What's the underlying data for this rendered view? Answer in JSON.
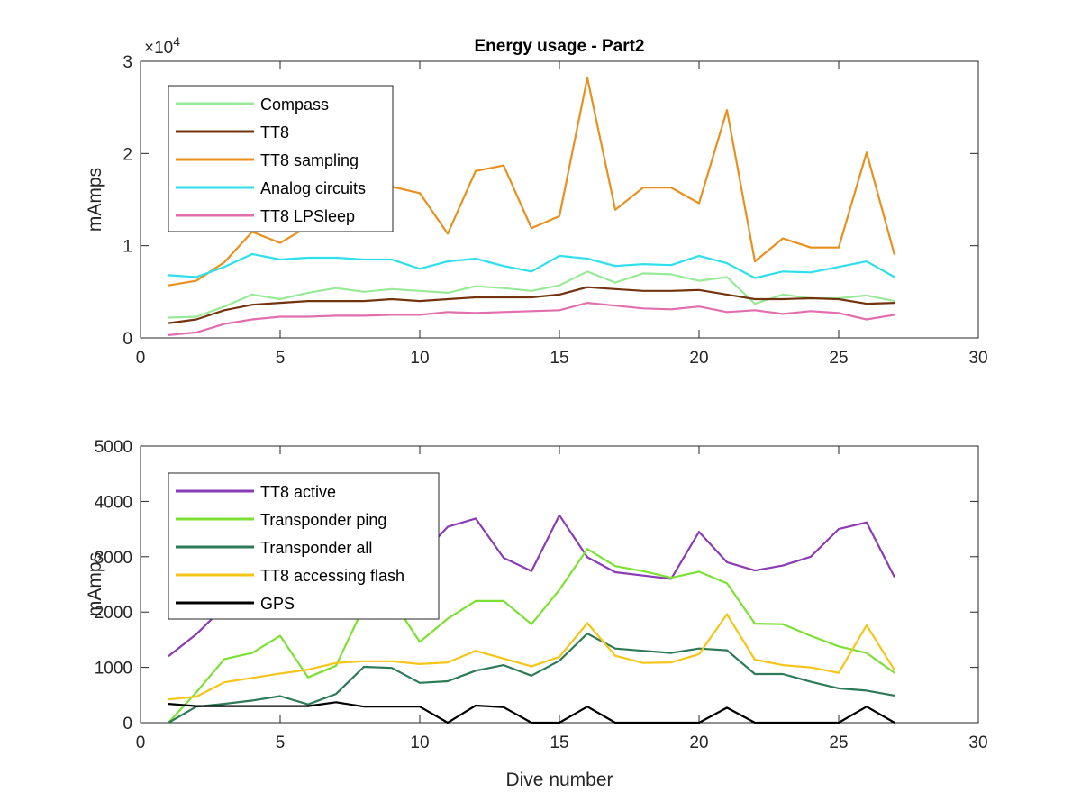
{
  "figure": {
    "title": "Energy usage - Part2"
  },
  "chart_data": [
    {
      "type": "line",
      "title": "Energy usage - Part2",
      "xlabel": "",
      "ylabel": "mAmps",
      "y_exponent_label": "×10",
      "y_exponent_power": "4",
      "xlim": [
        0,
        30
      ],
      "ylim": [
        0,
        30000
      ],
      "xticks": [
        0,
        5,
        10,
        15,
        20,
        25,
        30
      ],
      "yticks": [
        0,
        10000,
        20000,
        30000
      ],
      "ytick_labels": [
        "0",
        "1",
        "2",
        "3"
      ],
      "grid": false,
      "legend_position": "top-left",
      "x": [
        1,
        2,
        3,
        4,
        5,
        6,
        7,
        8,
        9,
        10,
        11,
        12,
        13,
        14,
        15,
        16,
        17,
        18,
        19,
        20,
        21,
        22,
        23,
        24,
        25,
        26,
        27
      ],
      "series": [
        {
          "name": "Compass",
          "color": "#98ea98",
          "values": [
            2200,
            2300,
            3400,
            4700,
            4200,
            4900,
            5400,
            5000,
            5300,
            5100,
            4900,
            5600,
            5400,
            5100,
            5700,
            7200,
            6000,
            7000,
            6900,
            6200,
            6600,
            3700,
            4700,
            4300,
            4300,
            4600,
            4000
          ]
        },
        {
          "name": "TT8",
          "color": "#73330f",
          "values": [
            1600,
            2000,
            3000,
            3600,
            3800,
            4000,
            4000,
            4000,
            4200,
            4000,
            4200,
            4400,
            4400,
            4400,
            4700,
            5500,
            5300,
            5100,
            5100,
            5200,
            4700,
            4200,
            4200,
            4300,
            4200,
            3700,
            3800
          ]
        },
        {
          "name": "TT8 sampling",
          "color": "#e8901e",
          "values": [
            5700,
            6200,
            8200,
            11500,
            10300,
            12100,
            13800,
            15000,
            16400,
            15700,
            11300,
            18100,
            18700,
            11900,
            13200,
            28200,
            13900,
            16300,
            16300,
            14600,
            24700,
            8300,
            10800,
            9800,
            9800,
            20100,
            9000
          ]
        },
        {
          "name": "Analog circuits",
          "color": "#2de0ea",
          "values": [
            6800,
            6600,
            7700,
            9100,
            8500,
            8700,
            8700,
            8500,
            8500,
            7500,
            8300,
            8600,
            7800,
            7200,
            8900,
            8600,
            7800,
            8000,
            7900,
            8900,
            8100,
            6500,
            7200,
            7100,
            7700,
            8300,
            6600
          ]
        },
        {
          "name": "TT8 LPSleep",
          "color": "#e16fae",
          "values": [
            300,
            600,
            1500,
            2000,
            2300,
            2300,
            2400,
            2400,
            2500,
            2500,
            2800,
            2700,
            2800,
            2900,
            3000,
            3800,
            3500,
            3200,
            3100,
            3400,
            2800,
            3000,
            2600,
            2900,
            2700,
            2000,
            2500
          ]
        }
      ]
    },
    {
      "type": "line",
      "title": "",
      "xlabel": "Dive number",
      "ylabel": "mAmps",
      "xlim": [
        0,
        30
      ],
      "ylim": [
        0,
        5000
      ],
      "xticks": [
        0,
        5,
        10,
        15,
        20,
        25,
        30
      ],
      "yticks": [
        0,
        1000,
        2000,
        3000,
        4000,
        5000
      ],
      "ytick_labels": [
        "0",
        "1000",
        "2000",
        "3000",
        "4000",
        "5000"
      ],
      "grid": false,
      "legend_position": "top-left",
      "x": [
        1,
        2,
        3,
        4,
        5,
        6,
        7,
        8,
        9,
        10,
        11,
        12,
        13,
        14,
        15,
        16,
        17,
        18,
        19,
        20,
        21,
        22,
        23,
        24,
        25,
        26,
        27
      ],
      "series": [
        {
          "name": "TT8 active",
          "color": "#8a3cb4",
          "values": [
            1200,
            1600,
            2100,
            2600,
            2700,
            2900,
            3000,
            3200,
            3100,
            3000,
            3540,
            3690,
            2980,
            2740,
            3750,
            2990,
            2720,
            2660,
            2600,
            3450,
            2900,
            2750,
            2840,
            3000,
            3500,
            3620,
            2630
          ]
        },
        {
          "name": "Transponder ping",
          "color": "#7de135",
          "values": [
            0,
            550,
            1150,
            1260,
            1570,
            820,
            1030,
            2100,
            2230,
            1460,
            1880,
            2200,
            2200,
            1780,
            2400,
            3140,
            2830,
            2740,
            2620,
            2730,
            2520,
            1790,
            1780,
            1570,
            1380,
            1260,
            900
          ]
        },
        {
          "name": "Transponder all",
          "color": "#2e7a58",
          "values": [
            0,
            290,
            340,
            400,
            480,
            330,
            520,
            1010,
            990,
            720,
            750,
            940,
            1040,
            850,
            1120,
            1610,
            1340,
            1300,
            1260,
            1340,
            1310,
            880,
            880,
            740,
            620,
            580,
            490
          ]
        },
        {
          "name": "TT8 accessing flash",
          "color": "#f5c518",
          "values": [
            420,
            470,
            730,
            810,
            890,
            960,
            1080,
            1110,
            1110,
            1060,
            1090,
            1300,
            1160,
            1020,
            1190,
            1800,
            1210,
            1080,
            1090,
            1240,
            1960,
            1140,
            1040,
            1000,
            900,
            1760,
            950
          ]
        },
        {
          "name": "GPS",
          "color": "#000000",
          "values": [
            340,
            300,
            300,
            300,
            300,
            300,
            370,
            290,
            290,
            290,
            0,
            310,
            280,
            0,
            0,
            290,
            0,
            0,
            0,
            0,
            270,
            0,
            0,
            0,
            0,
            290,
            0
          ]
        }
      ]
    }
  ]
}
